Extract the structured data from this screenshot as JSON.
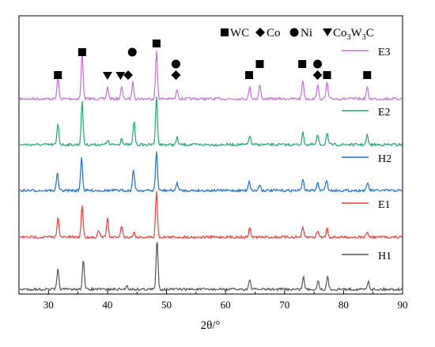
{
  "chart_data": {
    "type": "line",
    "title": "",
    "xlabel": "2θ/°",
    "ylabel": "",
    "xlim": [
      25,
      90
    ],
    "xticks": [
      "30",
      "40",
      "50",
      "60",
      "70",
      "80",
      "90"
    ],
    "grid": false,
    "legend": {
      "placement": "top-right",
      "entries": [
        {
          "symbol": "square",
          "label": "WC"
        },
        {
          "symbol": "diamond",
          "label": "Co"
        },
        {
          "symbol": "circle",
          "label": "Ni"
        },
        {
          "symbol": "triangle-down",
          "label": "Co",
          "sub1": "3",
          "mid": "W",
          "sub2": "3",
          "tail": "C"
        }
      ]
    },
    "series": [
      {
        "name": "E3",
        "color": "#c56fd8",
        "peaks": [
          [
            31.6,
            0.45
          ],
          [
            35.7,
            1.0
          ],
          [
            40.0,
            0.25
          ],
          [
            42.4,
            0.25
          ],
          [
            44.3,
            0.35
          ],
          [
            48.3,
            1.0
          ],
          [
            51.8,
            0.2
          ],
          [
            64.1,
            0.25
          ],
          [
            65.8,
            0.3
          ],
          [
            73.1,
            0.4
          ],
          [
            75.6,
            0.3
          ],
          [
            77.2,
            0.35
          ],
          [
            84.0,
            0.25
          ]
        ]
      },
      {
        "name": "E2",
        "color": "#1aaa72",
        "peaks": [
          [
            31.6,
            0.45
          ],
          [
            35.7,
            0.9
          ],
          [
            40.0,
            0.1
          ],
          [
            42.4,
            0.15
          ],
          [
            44.5,
            0.5
          ],
          [
            48.3,
            1.0
          ],
          [
            51.8,
            0.15
          ],
          [
            64.1,
            0.2
          ],
          [
            73.1,
            0.25
          ],
          [
            75.6,
            0.2
          ],
          [
            77.2,
            0.25
          ],
          [
            84.0,
            0.2
          ]
        ]
      },
      {
        "name": "H2",
        "color": "#1a6fd4",
        "peaks": [
          [
            31.5,
            0.45
          ],
          [
            35.6,
            0.85
          ],
          [
            44.4,
            0.55
          ],
          [
            48.3,
            1.0
          ],
          [
            51.8,
            0.2
          ],
          [
            64.0,
            0.25
          ],
          [
            65.8,
            0.15
          ],
          [
            73.1,
            0.3
          ],
          [
            75.6,
            0.2
          ],
          [
            77.1,
            0.28
          ],
          [
            84.1,
            0.2
          ]
        ]
      },
      {
        "name": "E1",
        "color": "#e8423f",
        "peaks": [
          [
            31.6,
            0.45
          ],
          [
            35.7,
            0.7
          ],
          [
            38.5,
            0.15
          ],
          [
            40.0,
            0.4
          ],
          [
            42.4,
            0.25
          ],
          [
            44.5,
            0.1
          ],
          [
            48.3,
            1.0
          ],
          [
            64.1,
            0.2
          ],
          [
            73.1,
            0.2
          ],
          [
            75.6,
            0.15
          ],
          [
            77.2,
            0.2
          ],
          [
            84.0,
            0.12
          ]
        ]
      },
      {
        "name": "H1",
        "color": "#555555",
        "peaks": [
          [
            31.6,
            0.4
          ],
          [
            35.9,
            0.6
          ],
          [
            43.3,
            0.08
          ],
          [
            48.4,
            1.0
          ],
          [
            64.1,
            0.2
          ],
          [
            73.2,
            0.25
          ],
          [
            75.7,
            0.18
          ],
          [
            77.3,
            0.25
          ],
          [
            84.2,
            0.17
          ]
        ]
      }
    ],
    "markers": [
      {
        "symbol": "square",
        "x": 31.6,
        "level": "low"
      },
      {
        "symbol": "square",
        "x": 35.7,
        "level": "high"
      },
      {
        "symbol": "triangle-down",
        "x": 40.0,
        "level": "low"
      },
      {
        "symbol": "triangle-down",
        "x": 42.2,
        "level": "low"
      },
      {
        "symbol": "diamond",
        "x": 43.5,
        "level": "low"
      },
      {
        "symbol": "circle",
        "x": 44.2,
        "level": "high"
      },
      {
        "symbol": "square",
        "x": 48.3,
        "level": "top"
      },
      {
        "symbol": "circle",
        "x": 51.6,
        "level": "mid"
      },
      {
        "symbol": "diamond",
        "x": 51.6,
        "level": "low"
      },
      {
        "symbol": "square",
        "x": 64.0,
        "level": "low"
      },
      {
        "symbol": "square",
        "x": 65.8,
        "level": "mid"
      },
      {
        "symbol": "square",
        "x": 73.0,
        "level": "mid"
      },
      {
        "symbol": "circle",
        "x": 75.6,
        "level": "mid"
      },
      {
        "symbol": "diamond",
        "x": 75.6,
        "level": "low"
      },
      {
        "symbol": "square",
        "x": 77.2,
        "level": "low"
      },
      {
        "symbol": "square",
        "x": 84.0,
        "level": "low"
      }
    ]
  }
}
